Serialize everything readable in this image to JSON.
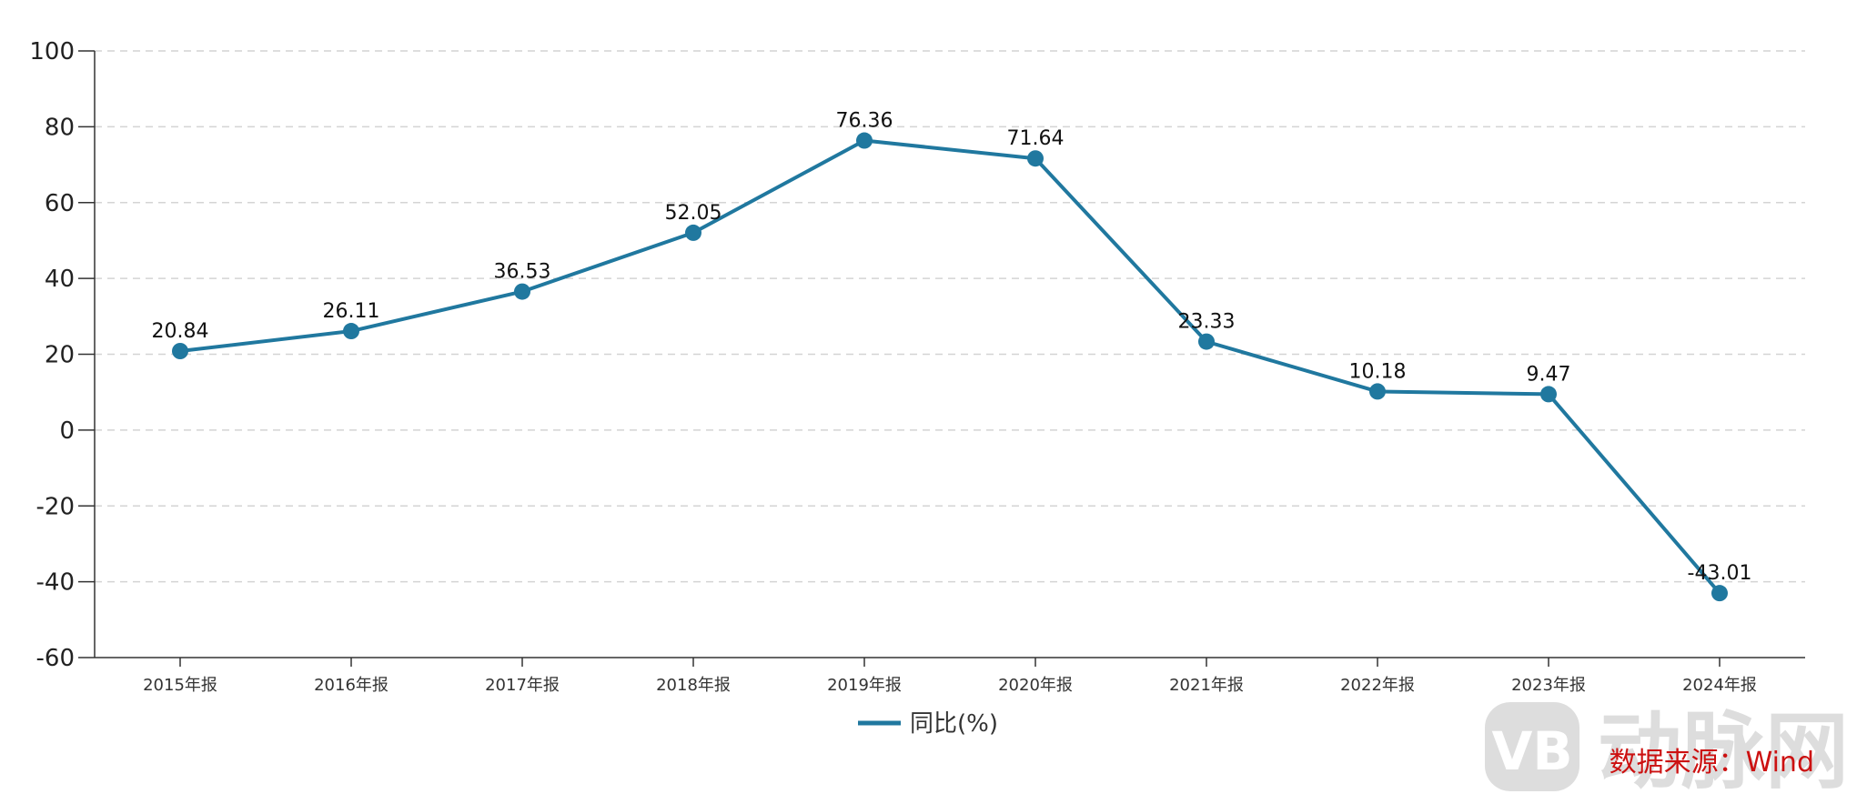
{
  "chart_data": {
    "type": "line",
    "categories": [
      "2015年报",
      "2016年报",
      "2017年报",
      "2018年报",
      "2019年报",
      "2020年报",
      "2021年报",
      "2022年报",
      "2023年报",
      "2024年报"
    ],
    "series": [
      {
        "name": "同比(%)",
        "values": [
          20.84,
          26.11,
          36.53,
          52.05,
          76.36,
          71.64,
          23.33,
          10.18,
          9.47,
          -43.01
        ],
        "color": "#20789f"
      }
    ],
    "data_labels": [
      "20.84",
      "26.11",
      "36.53",
      "52.05",
      "76.36",
      "71.64",
      "23.33",
      "10.18",
      "9.47",
      "-43.01"
    ],
    "yticks": [
      100,
      80,
      60,
      40,
      20,
      0,
      -20,
      -40,
      -60
    ],
    "ylim": [
      -60,
      100
    ],
    "grid": true,
    "legend_position": "bottom-center",
    "xlabel": "",
    "ylabel": ""
  },
  "source": "数据来源：Wind",
  "watermark": {
    "logo_text": "VB",
    "text": "动脉网"
  }
}
